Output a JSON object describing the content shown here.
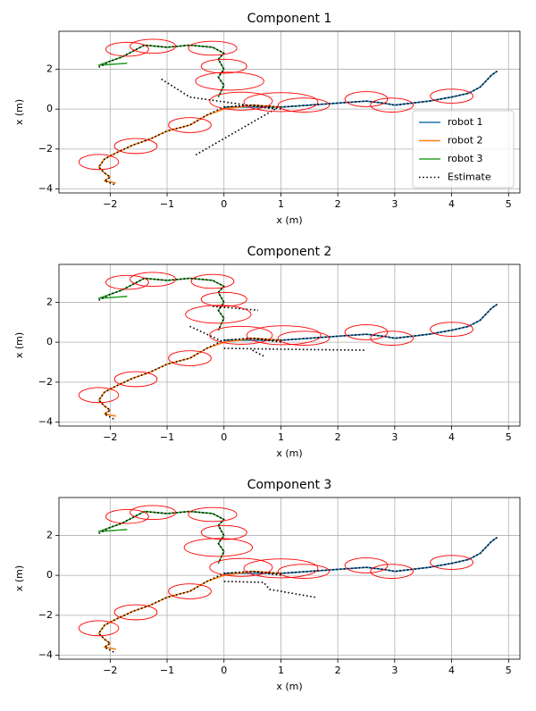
{
  "chart_data": [
    {
      "type": "line",
      "title": "Component 1",
      "x_label": "x (m)",
      "y_label": "x (m)",
      "xlim": [
        -2.9,
        5.2
      ],
      "ylim": [
        -4.2,
        3.9
      ],
      "grid": true,
      "legend": "lower right",
      "xticks": [
        {
          "value": -2,
          "label": "−2"
        },
        {
          "value": -1,
          "label": "−1"
        },
        0,
        1,
        2,
        3,
        4,
        5
      ],
      "yticks": [
        {
          "value": -4,
          "label": "−4"
        },
        {
          "value": -2,
          "label": "−2"
        },
        0,
        2
      ],
      "series": [
        {
          "name": "robot 1",
          "color": "#1f77b4",
          "style": "solid",
          "x": [
            0,
            0.5,
            1,
            1.5,
            2,
            2.5,
            2.8,
            3,
            3.3,
            3.6,
            4,
            4.3,
            4.5,
            4.6,
            4.7,
            4.8
          ],
          "values": [
            0.1,
            0.1,
            0.1,
            0.2,
            0.3,
            0.4,
            0.3,
            0.2,
            0.3,
            0.4,
            0.6,
            0.8,
            1.1,
            1.4,
            1.7,
            1.9
          ]
        },
        {
          "name": "robot 2",
          "color": "#ff7f0e",
          "style": "solid",
          "x": [
            1,
            0.5,
            0,
            -0.3,
            -0.6,
            -1,
            -1.3,
            -1.6,
            -1.9,
            -2.1,
            -2.2,
            -2.1,
            -2,
            -2.1,
            -1.9
          ],
          "values": [
            0.1,
            0.2,
            0,
            -0.3,
            -0.8,
            -1.1,
            -1.5,
            -1.8,
            -2.2,
            -2.5,
            -2.9,
            -3.2,
            -3.4,
            -3.6,
            -3.7
          ]
        },
        {
          "name": "robot 3",
          "color": "#2ca02c",
          "style": "solid",
          "x": [
            -0.1,
            0,
            -0.1,
            0,
            -0.1,
            0,
            -0.2,
            -0.6,
            -1,
            -1.4,
            -1.6,
            -1.8,
            -2,
            -2.2,
            -1.7
          ],
          "values": [
            0.6,
            1.2,
            1.6,
            2,
            2.5,
            2.8,
            3.1,
            3.2,
            3.1,
            3.2,
            2.9,
            2.6,
            2.4,
            2.2,
            2.3
          ]
        },
        {
          "name": "Estimate",
          "color": "#000000",
          "style": "dotted",
          "x": [
            -2.2,
            -2,
            -1.8,
            -1.4,
            -1,
            -0.6,
            -0.2,
            0,
            -0.1,
            0,
            -0.1,
            0,
            -0.1,
            null,
            -1.1,
            -0.6,
            0.9,
            -0.5,
            null,
            1,
            0.5,
            0,
            -0.3,
            -0.6,
            -1,
            -1.3,
            -1.6,
            -1.9,
            -2.1,
            -2.2,
            -2.1,
            -2,
            -2.1,
            -1.9,
            null,
            0,
            0.5,
            1,
            1.5,
            2,
            2.5,
            2.8,
            3,
            3.3,
            3.6,
            4,
            4.3,
            4.5,
            4.6,
            4.7,
            4.8
          ],
          "values": [
            2.1,
            2.4,
            2.6,
            3.2,
            3.1,
            3.2,
            3.1,
            2.8,
            2.5,
            2,
            1.6,
            1.2,
            0.6,
            null,
            1.5,
            0.6,
            0,
            -2.3,
            null,
            0,
            0.2,
            0.1,
            -0.3,
            -0.8,
            -1.1,
            -1.5,
            -1.8,
            -2.2,
            -2.5,
            -2.9,
            -3.2,
            -3.4,
            -3.6,
            -3.8,
            null,
            0.1,
            0.2,
            0.1,
            0.2,
            0.3,
            0.4,
            0.3,
            0.2,
            0.3,
            0.4,
            0.6,
            0.8,
            1.1,
            1.4,
            1.7,
            1.9
          ]
        }
      ],
      "ellipses": [
        {
          "x": -1.7,
          "y": 3.0,
          "width": 0.75,
          "height": 0.7
        },
        {
          "x": -1.25,
          "y": 3.15,
          "width": 0.8,
          "height": 0.7
        },
        {
          "x": -0.2,
          "y": 3.05,
          "width": 0.85,
          "height": 0.7
        },
        {
          "x": 0,
          "y": 2.15,
          "width": 0.8,
          "height": 0.7
        },
        {
          "x": 0.1,
          "y": 1.4,
          "width": 1.2,
          "height": 0.9
        },
        {
          "x": 0.3,
          "y": 0.4,
          "width": 1.1,
          "height": 0.9
        },
        {
          "x": 1.0,
          "y": 0.35,
          "width": 1.3,
          "height": 0.95
        },
        {
          "x": 1.4,
          "y": 0.2,
          "width": 0.9,
          "height": 0.7
        },
        {
          "x": 2.5,
          "y": 0.5,
          "width": 0.75,
          "height": 0.75
        },
        {
          "x": 2.95,
          "y": 0.2,
          "width": 0.75,
          "height": 0.7
        },
        {
          "x": 4.0,
          "y": 0.65,
          "width": 0.75,
          "height": 0.7
        },
        {
          "x": -0.6,
          "y": -0.8,
          "width": 0.75,
          "height": 0.75
        },
        {
          "x": -1.55,
          "y": -1.85,
          "width": 0.75,
          "height": 0.75
        },
        {
          "x": -2.2,
          "y": -2.65,
          "width": 0.7,
          "height": 0.75
        }
      ]
    },
    {
      "type": "line",
      "title": "Component 2",
      "x_label": "x (m)",
      "y_label": "x (m)",
      "xlim": [
        -2.9,
        5.2
      ],
      "ylim": [
        -4.2,
        3.9
      ],
      "grid": true,
      "xticks": [
        {
          "value": -2,
          "label": "−2"
        },
        {
          "value": -1,
          "label": "−1"
        },
        0,
        1,
        2,
        3,
        4,
        5
      ],
      "yticks": [
        {
          "value": -4,
          "label": "−4"
        },
        {
          "value": -2,
          "label": "−2"
        },
        0,
        2
      ],
      "series": [
        {
          "name": "robot 1",
          "color": "#1f77b4",
          "style": "solid",
          "x": [
            0,
            0.5,
            1,
            1.5,
            2,
            2.5,
            2.8,
            3,
            3.3,
            3.6,
            4,
            4.3,
            4.5,
            4.6,
            4.7,
            4.8
          ],
          "values": [
            0.1,
            0.1,
            0.1,
            0.2,
            0.3,
            0.4,
            0.3,
            0.2,
            0.3,
            0.4,
            0.6,
            0.8,
            1.1,
            1.4,
            1.7,
            1.9
          ]
        },
        {
          "name": "robot 2",
          "color": "#ff7f0e",
          "style": "solid",
          "x": [
            1,
            0.5,
            0,
            -0.3,
            -0.6,
            -1,
            -1.3,
            -1.6,
            -1.9,
            -2.1,
            -2.2,
            -2.1,
            -2,
            -2.1,
            -1.9
          ],
          "values": [
            0.1,
            0.2,
            0,
            -0.3,
            -0.8,
            -1.1,
            -1.5,
            -1.8,
            -2.2,
            -2.5,
            -2.9,
            -3.2,
            -3.4,
            -3.6,
            -3.7
          ]
        },
        {
          "name": "robot 3",
          "color": "#2ca02c",
          "style": "solid",
          "x": [
            -0.1,
            0,
            -0.1,
            0,
            -0.1,
            0,
            -0.2,
            -0.6,
            -1,
            -1.4,
            -1.6,
            -1.8,
            -2,
            -2.2,
            -1.7
          ],
          "values": [
            0.6,
            1.2,
            1.6,
            2,
            2.5,
            2.8,
            3.1,
            3.2,
            3.1,
            3.2,
            2.9,
            2.6,
            2.4,
            2.2,
            2.3
          ]
        },
        {
          "name": "Estimate",
          "color": "#000000",
          "style": "dotted",
          "x": [
            -2.2,
            -2,
            -1.8,
            -1.4,
            -1,
            -0.6,
            -0.2,
            0,
            -0.1,
            0,
            -0.1,
            0,
            -0.1,
            null,
            -0.2,
            0.6,
            null,
            -0.6,
            0,
            null,
            0,
            1,
            2.5,
            null,
            0.5,
            0.7,
            null,
            1,
            0.5,
            0,
            -0.3,
            -0.6,
            -1,
            -1.3,
            -1.6,
            -1.9,
            -2.1,
            -2.2,
            -2.1,
            -2,
            -2.1,
            -1.9,
            null,
            0,
            0.5,
            1,
            1.5,
            2,
            2.5,
            2.8,
            3,
            3.3,
            3.6,
            4,
            4.3,
            4.5,
            4.6,
            4.7,
            4.8
          ],
          "values": [
            2.1,
            2.4,
            2.6,
            3.2,
            3.1,
            3.2,
            3.1,
            2.8,
            2.5,
            2,
            1.6,
            1.2,
            0.6,
            null,
            1.8,
            1.6,
            null,
            0.8,
            0,
            null,
            -0.3,
            -0.35,
            -0.4,
            null,
            -0.4,
            -0.7,
            null,
            0,
            0.2,
            0.1,
            -0.3,
            -0.8,
            -1.1,
            -1.5,
            -1.8,
            -2.2,
            -2.5,
            -2.9,
            -3.2,
            -3.4,
            -3.6,
            -3.9,
            null,
            0.1,
            0.2,
            0.1,
            0.2,
            0.3,
            0.4,
            0.3,
            0.2,
            0.3,
            0.4,
            0.6,
            0.8,
            1.1,
            1.4,
            1.7,
            1.9
          ]
        }
      ],
      "ellipses": [
        {
          "x": -1.7,
          "y": 3.0,
          "width": 0.75,
          "height": 0.7
        },
        {
          "x": -1.25,
          "y": 3.15,
          "width": 0.8,
          "height": 0.7
        },
        {
          "x": -0.2,
          "y": 3.05,
          "width": 0.75,
          "height": 0.7
        },
        {
          "x": 0,
          "y": 2.15,
          "width": 0.8,
          "height": 0.7
        },
        {
          "x": -0.1,
          "y": 1.4,
          "width": 1.15,
          "height": 0.9
        },
        {
          "x": 0.3,
          "y": 0.35,
          "width": 1.1,
          "height": 0.9
        },
        {
          "x": 1.05,
          "y": 0.35,
          "width": 1.3,
          "height": 0.95
        },
        {
          "x": 1.4,
          "y": 0.2,
          "width": 0.9,
          "height": 0.7
        },
        {
          "x": 2.5,
          "y": 0.5,
          "width": 0.75,
          "height": 0.75
        },
        {
          "x": 2.95,
          "y": 0.2,
          "width": 0.75,
          "height": 0.7
        },
        {
          "x": 4.0,
          "y": 0.65,
          "width": 0.75,
          "height": 0.7
        },
        {
          "x": -0.6,
          "y": -0.8,
          "width": 0.75,
          "height": 0.75
        },
        {
          "x": -1.55,
          "y": -1.85,
          "width": 0.75,
          "height": 0.75
        },
        {
          "x": -2.2,
          "y": -2.65,
          "width": 0.7,
          "height": 0.75
        }
      ]
    },
    {
      "type": "line",
      "title": "Component 3",
      "x_label": "x (m)",
      "y_label": "x (m)",
      "xlim": [
        -2.9,
        5.2
      ],
      "ylim": [
        -4.2,
        3.9
      ],
      "grid": true,
      "xticks": [
        {
          "value": -2,
          "label": "−2"
        },
        {
          "value": -1,
          "label": "−1"
        },
        0,
        1,
        2,
        3,
        4,
        5
      ],
      "yticks": [
        {
          "value": -4,
          "label": "−4"
        },
        {
          "value": -2,
          "label": "−2"
        },
        0,
        2
      ],
      "series": [
        {
          "name": "robot 1",
          "color": "#1f77b4",
          "style": "solid",
          "x": [
            0,
            0.5,
            1,
            1.5,
            2,
            2.5,
            2.8,
            3,
            3.3,
            3.6,
            4,
            4.3,
            4.5,
            4.6,
            4.7,
            4.8
          ],
          "values": [
            0.1,
            0.1,
            0.1,
            0.2,
            0.3,
            0.4,
            0.3,
            0.2,
            0.3,
            0.4,
            0.6,
            0.8,
            1.1,
            1.4,
            1.7,
            1.9
          ]
        },
        {
          "name": "robot 2",
          "color": "#ff7f0e",
          "style": "solid",
          "x": [
            1,
            0.5,
            0,
            -0.3,
            -0.6,
            -1,
            -1.3,
            -1.6,
            -1.9,
            -2.1,
            -2.2,
            -2.1,
            -2,
            -2.1,
            -1.9
          ],
          "values": [
            0.1,
            0.2,
            0,
            -0.3,
            -0.8,
            -1.1,
            -1.5,
            -1.8,
            -2.2,
            -2.5,
            -2.9,
            -3.2,
            -3.4,
            -3.6,
            -3.7
          ]
        },
        {
          "name": "robot 3",
          "color": "#2ca02c",
          "style": "solid",
          "x": [
            -0.1,
            0,
            -0.1,
            0,
            -0.1,
            0,
            -0.2,
            -0.6,
            -1,
            -1.4,
            -1.6,
            -1.8,
            -2,
            -2.2,
            -1.7
          ],
          "values": [
            0.6,
            1.2,
            1.6,
            2,
            2.5,
            2.8,
            3.1,
            3.2,
            3.1,
            3.2,
            2.9,
            2.6,
            2.4,
            2.2,
            2.3
          ]
        },
        {
          "name": "Estimate",
          "color": "#000000",
          "style": "dotted",
          "x": [
            -2.2,
            -2,
            -1.8,
            -1.4,
            -1,
            -0.6,
            -0.2,
            0,
            -0.1,
            0,
            -0.1,
            0,
            -0.1,
            null,
            0,
            0.7,
            0.8,
            1.6,
            null,
            1,
            0.5,
            0,
            -0.3,
            -0.6,
            -1,
            -1.3,
            -1.6,
            -1.9,
            -2.1,
            -2.2,
            -2.1,
            -2,
            -2.1,
            -1.9,
            null,
            0,
            0.5,
            1,
            1.5,
            2,
            2.5,
            2.8,
            3,
            3.3,
            3.6,
            4,
            4.3,
            4.5,
            4.6,
            4.7,
            4.8
          ],
          "values": [
            2.1,
            2.4,
            2.6,
            3.2,
            3.1,
            3.2,
            3.1,
            2.8,
            2.5,
            2,
            1.6,
            1.2,
            0.6,
            null,
            -0.3,
            -0.35,
            -0.7,
            -1.1,
            null,
            0,
            0.2,
            0.1,
            -0.3,
            -0.8,
            -1.1,
            -1.5,
            -1.8,
            -2.2,
            -2.5,
            -2.9,
            -3.2,
            -3.4,
            -3.6,
            -3.9,
            null,
            0.1,
            0.2,
            0.1,
            0.2,
            0.3,
            0.4,
            0.3,
            0.2,
            0.3,
            0.4,
            0.6,
            0.8,
            1.1,
            1.4,
            1.7,
            1.9
          ]
        }
      ],
      "ellipses": [
        {
          "x": -1.7,
          "y": 2.95,
          "width": 0.75,
          "height": 0.7
        },
        {
          "x": -1.25,
          "y": 3.15,
          "width": 0.8,
          "height": 0.7
        },
        {
          "x": -0.2,
          "y": 3.05,
          "width": 0.85,
          "height": 0.7
        },
        {
          "x": 0,
          "y": 2.15,
          "width": 0.8,
          "height": 0.7
        },
        {
          "x": -0.1,
          "y": 1.4,
          "width": 1.2,
          "height": 0.9
        },
        {
          "x": 0.3,
          "y": 0.4,
          "width": 1.1,
          "height": 0.9
        },
        {
          "x": 1.0,
          "y": 0.35,
          "width": 1.3,
          "height": 0.95
        },
        {
          "x": 1.4,
          "y": 0.2,
          "width": 0.9,
          "height": 0.7
        },
        {
          "x": 2.5,
          "y": 0.5,
          "width": 0.75,
          "height": 0.75
        },
        {
          "x": 2.95,
          "y": 0.2,
          "width": 0.75,
          "height": 0.7
        },
        {
          "x": 4.0,
          "y": 0.65,
          "width": 0.75,
          "height": 0.7
        },
        {
          "x": -0.6,
          "y": -0.8,
          "width": 0.75,
          "height": 0.75
        },
        {
          "x": -1.55,
          "y": -1.85,
          "width": 0.75,
          "height": 0.75
        },
        {
          "x": -2.2,
          "y": -2.65,
          "width": 0.7,
          "height": 0.75
        }
      ]
    }
  ]
}
